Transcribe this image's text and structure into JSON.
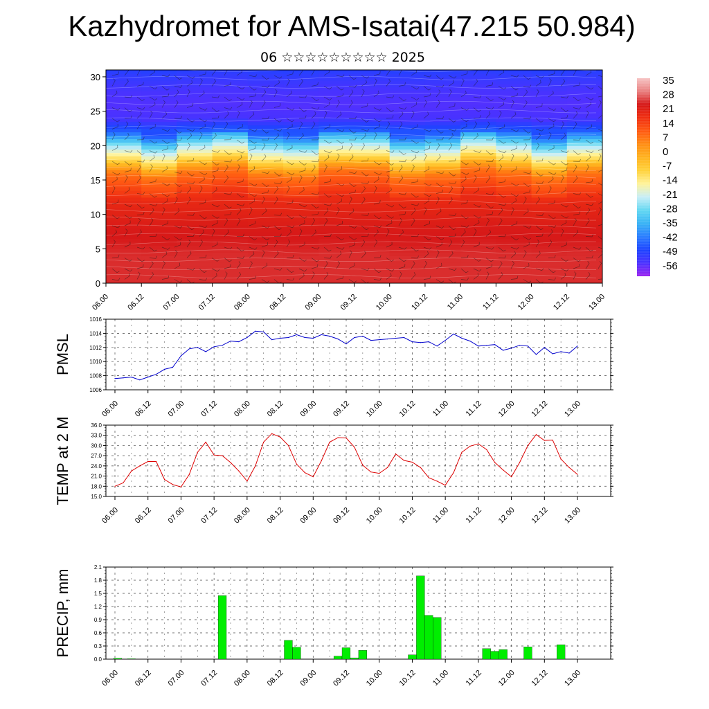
{
  "title": "Kazhydromet for AMS-Isatai(47.215 50.984)",
  "subtitle": "06 ☆☆☆☆☆☆☆☆☆ 2025",
  "chart_data": [
    {
      "type": "heatmap",
      "name": "cross-section",
      "x_ticks": [
        "06.00",
        "06.12",
        "07.00",
        "07.12",
        "08.00",
        "08.12",
        "09.00",
        "09.12",
        "10.00",
        "10.12",
        "11.00",
        "11.12",
        "12.00",
        "12.12",
        "13.00"
      ],
      "y_ticks": [
        0,
        5,
        10,
        15,
        20,
        25,
        30
      ],
      "ylim": [
        0,
        31
      ],
      "colorbar_labels": [
        "35",
        "28",
        "21",
        "14",
        "7",
        "0",
        "-7",
        "-14",
        "-21",
        "-28",
        "-35",
        "-42",
        "-49",
        "-56"
      ],
      "colorbar_range": [
        -62,
        38
      ],
      "colorbar_colors": [
        "#9b25f0",
        "#4a32ff",
        "#1e44ff",
        "#2a7dff",
        "#39b3f5",
        "#63d8f2",
        "#c8eef7",
        "#fff39a",
        "#ffd23c",
        "#ffb31f",
        "#ff8d14",
        "#ff5a12",
        "#f03012",
        "#d61818",
        "#e97f7f",
        "#f6c3c3"
      ],
      "profile": [
        [
          0,
          26
        ],
        [
          4,
          26
        ],
        [
          8,
          24
        ],
        [
          12,
          20
        ],
        [
          14,
          14
        ],
        [
          16,
          8
        ],
        [
          17,
          0
        ],
        [
          18,
          -10
        ],
        [
          20,
          -25
        ],
        [
          22,
          -45
        ],
        [
          24,
          -55
        ],
        [
          26,
          -56
        ],
        [
          28,
          -55
        ],
        [
          30,
          -52
        ],
        [
          31,
          -50
        ]
      ],
      "overlay": "wind barbs"
    },
    {
      "type": "line",
      "name": "pmsl",
      "ylabel": "PMSL",
      "ylim": [
        1006,
        1016
      ],
      "y_ticks": [
        "1006",
        "1008",
        "1010",
        "1012",
        "1014",
        "1016"
      ],
      "x_ticks": [
        "06.00",
        "06.12",
        "07.00",
        "07.12",
        "08.00",
        "08.12",
        "09.00",
        "09.12",
        "10.00",
        "10.12",
        "11.00",
        "11.12",
        "12.00",
        "12.12",
        "13.00"
      ],
      "x": [
        0,
        3,
        6,
        9,
        12,
        15,
        18,
        21,
        24,
        27,
        30,
        33,
        36,
        39,
        42,
        45,
        48,
        51,
        54,
        57,
        60,
        63,
        66,
        69,
        72,
        75,
        78,
        81,
        84,
        87,
        90,
        93,
        96,
        99,
        102,
        105,
        108,
        111,
        114,
        117,
        120,
        123,
        126,
        129,
        132,
        135,
        138,
        141,
        144,
        147,
        150,
        153,
        156,
        159,
        162,
        165,
        168
      ],
      "series": [
        {
          "color": "#0000cc",
          "values": [
            1007.6,
            1007.7,
            1007.8,
            1007.4,
            1007.8,
            1008.2,
            1008.9,
            1009.2,
            1010.8,
            1011.8,
            1012.0,
            1011.4,
            1012.1,
            1012.3,
            1012.9,
            1012.8,
            1013.4,
            1014.3,
            1014.2,
            1013.1,
            1013.3,
            1013.4,
            1013.8,
            1013.4,
            1013.3,
            1013.8,
            1013.6,
            1013.2,
            1012.5,
            1013.4,
            1013.6,
            1013.0,
            1013.1,
            1013.2,
            1013.3,
            1013.4,
            1012.8,
            1012.7,
            1012.8,
            1012.2,
            1013.0,
            1013.9,
            1013.3,
            1012.9,
            1012.2,
            1012.3,
            1012.4,
            1011.6,
            1011.9,
            1012.3,
            1012.2,
            1011.0,
            1012.0,
            1011.1,
            1011.4,
            1011.2,
            1012.2
          ]
        }
      ]
    },
    {
      "type": "line",
      "name": "temp",
      "ylabel": "TEMP at 2 M",
      "ylim": [
        15,
        36
      ],
      "y_ticks": [
        "15.0",
        "18.0",
        "21.0",
        "24.0",
        "27.0",
        "30.0",
        "33.0",
        "36.0"
      ],
      "x_ticks": [
        "06.00",
        "06.12",
        "07.00",
        "07.12",
        "08.00",
        "08.12",
        "09.00",
        "09.12",
        "10.00",
        "10.12",
        "11.00",
        "11.12",
        "12.00",
        "12.12",
        "13.00"
      ],
      "x": [
        0,
        3,
        6,
        9,
        12,
        15,
        18,
        21,
        24,
        27,
        30,
        33,
        36,
        39,
        42,
        45,
        48,
        51,
        54,
        57,
        60,
        63,
        66,
        69,
        72,
        75,
        78,
        81,
        84,
        87,
        90,
        93,
        96,
        99,
        102,
        105,
        108,
        111,
        114,
        117,
        120,
        123,
        126,
        129,
        132,
        135,
        138,
        141,
        144,
        147,
        150,
        153,
        156,
        159,
        162,
        165,
        168
      ],
      "series": [
        {
          "color": "#dd0000",
          "values": [
            18.0,
            19.0,
            22.5,
            24.0,
            25.3,
            25.3,
            20.0,
            18.5,
            17.8,
            21.5,
            28.0,
            31.0,
            27.2,
            27.0,
            25.0,
            22.5,
            19.5,
            24.0,
            31.0,
            33.5,
            32.5,
            30.0,
            24.5,
            22.0,
            20.8,
            25.5,
            31.0,
            32.3,
            32.2,
            29.5,
            24.2,
            22.2,
            21.8,
            23.5,
            27.5,
            25.6,
            25.1,
            23.5,
            20.5,
            19.5,
            18.3,
            22.0,
            28.0,
            29.8,
            30.5,
            28.8,
            25.0,
            22.8,
            20.8,
            25.0,
            30.0,
            33.2,
            31.5,
            31.6,
            26.0,
            23.5,
            21.5
          ]
        }
      ]
    },
    {
      "type": "bar",
      "name": "precip",
      "ylabel": "PRECIP, mm",
      "ylim": [
        0,
        2.1
      ],
      "y_ticks": [
        "0.0",
        "0.3",
        "0.6",
        "0.9",
        "1.2",
        "1.5",
        "1.8",
        "2.1"
      ],
      "x_ticks": [
        "06.00",
        "06.12",
        "07.00",
        "07.12",
        "08.00",
        "08.12",
        "09.00",
        "09.12",
        "10.00",
        "10.12",
        "11.00",
        "11.12",
        "12.00",
        "12.12",
        "13.00"
      ],
      "bar_color": "#00ee00",
      "bars": [
        [
          1,
          0.02
        ],
        [
          6,
          0.01
        ],
        [
          39,
          1.45
        ],
        [
          63,
          0.43
        ],
        [
          66,
          0.27
        ],
        [
          81,
          0.07
        ],
        [
          84,
          0.26
        ],
        [
          87,
          0.03
        ],
        [
          90,
          0.2
        ],
        [
          108,
          0.1
        ],
        [
          111,
          1.9
        ],
        [
          114,
          1.0
        ],
        [
          117,
          0.95
        ],
        [
          135,
          0.24
        ],
        [
          138,
          0.18
        ],
        [
          141,
          0.22
        ],
        [
          150,
          0.28
        ],
        [
          162,
          0.33
        ]
      ]
    }
  ]
}
